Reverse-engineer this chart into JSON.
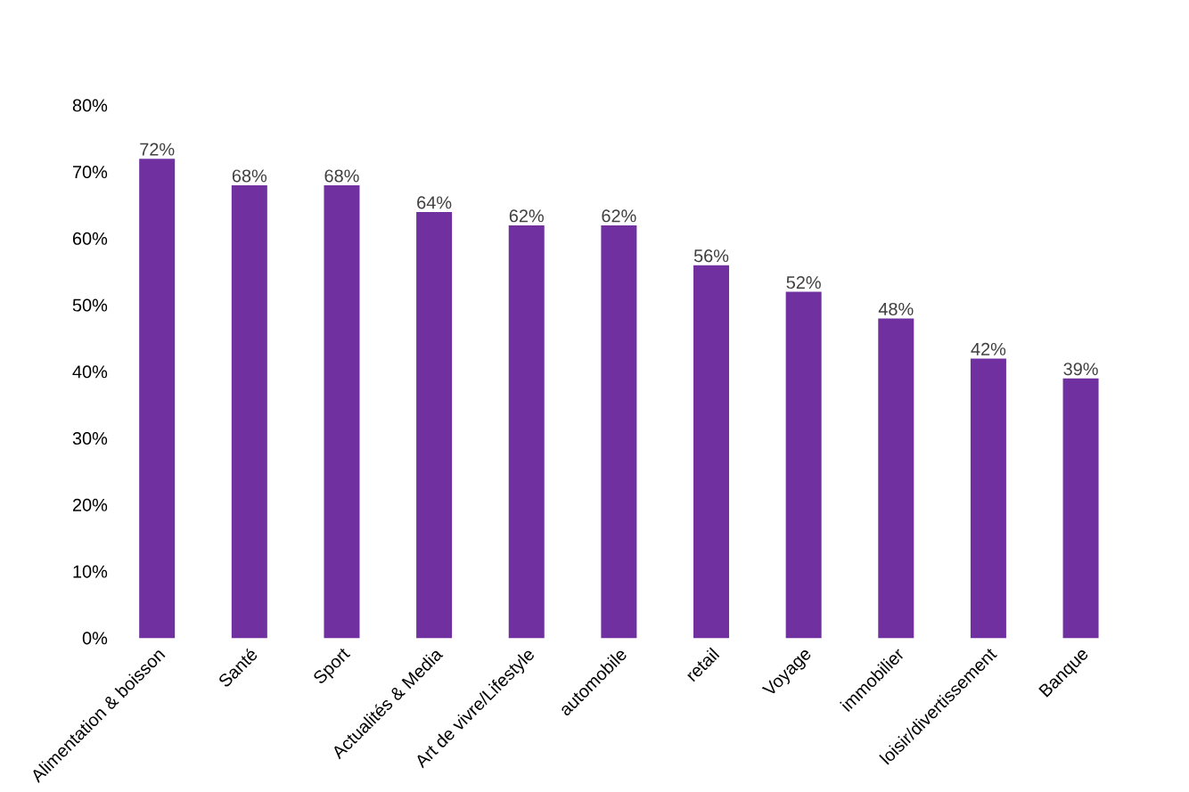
{
  "chart_data": {
    "type": "bar",
    "categories": [
      "Alimentation & boisson",
      "Santé",
      "Sport",
      "Actualités & Media",
      "Art de vivre/Lifestyle",
      "automobile",
      "retail",
      "Voyage",
      "immobilier",
      "loisir/divertissement",
      "Banque"
    ],
    "values": [
      72,
      68,
      68,
      64,
      62,
      62,
      56,
      52,
      48,
      42,
      39
    ],
    "value_labels": [
      "72%",
      "68%",
      "68%",
      "64%",
      "62%",
      "62%",
      "56%",
      "52%",
      "48%",
      "42%",
      "39%"
    ],
    "color": "#7030a0",
    "ylim": [
      0,
      80
    ],
    "yticks": [
      {
        "value": 0,
        "label": "0%"
      },
      {
        "value": 10,
        "label": "10%"
      },
      {
        "value": 20,
        "label": "20%"
      },
      {
        "value": 30,
        "label": "30%"
      },
      {
        "value": 40,
        "label": "40%"
      },
      {
        "value": 50,
        "label": "50%"
      },
      {
        "value": 60,
        "label": "60%"
      },
      {
        "value": 70,
        "label": "70%"
      },
      {
        "value": 80,
        "label": "80%"
      }
    ],
    "grid": false
  }
}
